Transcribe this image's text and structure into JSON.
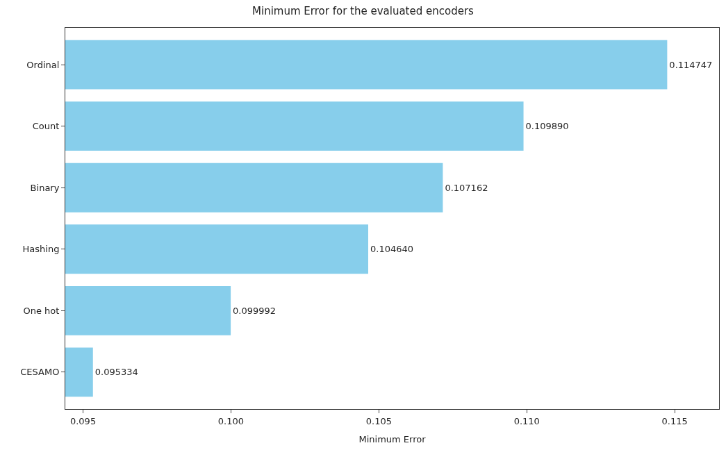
{
  "chart_data": {
    "type": "bar",
    "orientation": "horizontal",
    "title": "Minimum Error for the evaluated encoders",
    "xlabel": "Minimum Error",
    "categories": [
      "Ordinal",
      "Count",
      "Binary",
      "Hashing",
      "One hot",
      "CESAMO"
    ],
    "values": [
      0.114747,
      0.10989,
      0.107162,
      0.10464,
      0.099992,
      0.095334
    ],
    "value_labels": [
      "0.114747",
      "0.109890",
      "0.107162",
      "0.104640",
      "0.099992",
      "0.095334"
    ],
    "color": "#87ceeb",
    "xlim": [
      0.0944,
      0.1165
    ],
    "xticks": [
      {
        "value": 0.095,
        "label": "0.095"
      },
      {
        "value": 0.1,
        "label": "0.100"
      },
      {
        "value": 0.105,
        "label": "0.105"
      },
      {
        "value": 0.11,
        "label": "0.110"
      },
      {
        "value": 0.115,
        "label": "0.115"
      }
    ],
    "legend": false
  }
}
